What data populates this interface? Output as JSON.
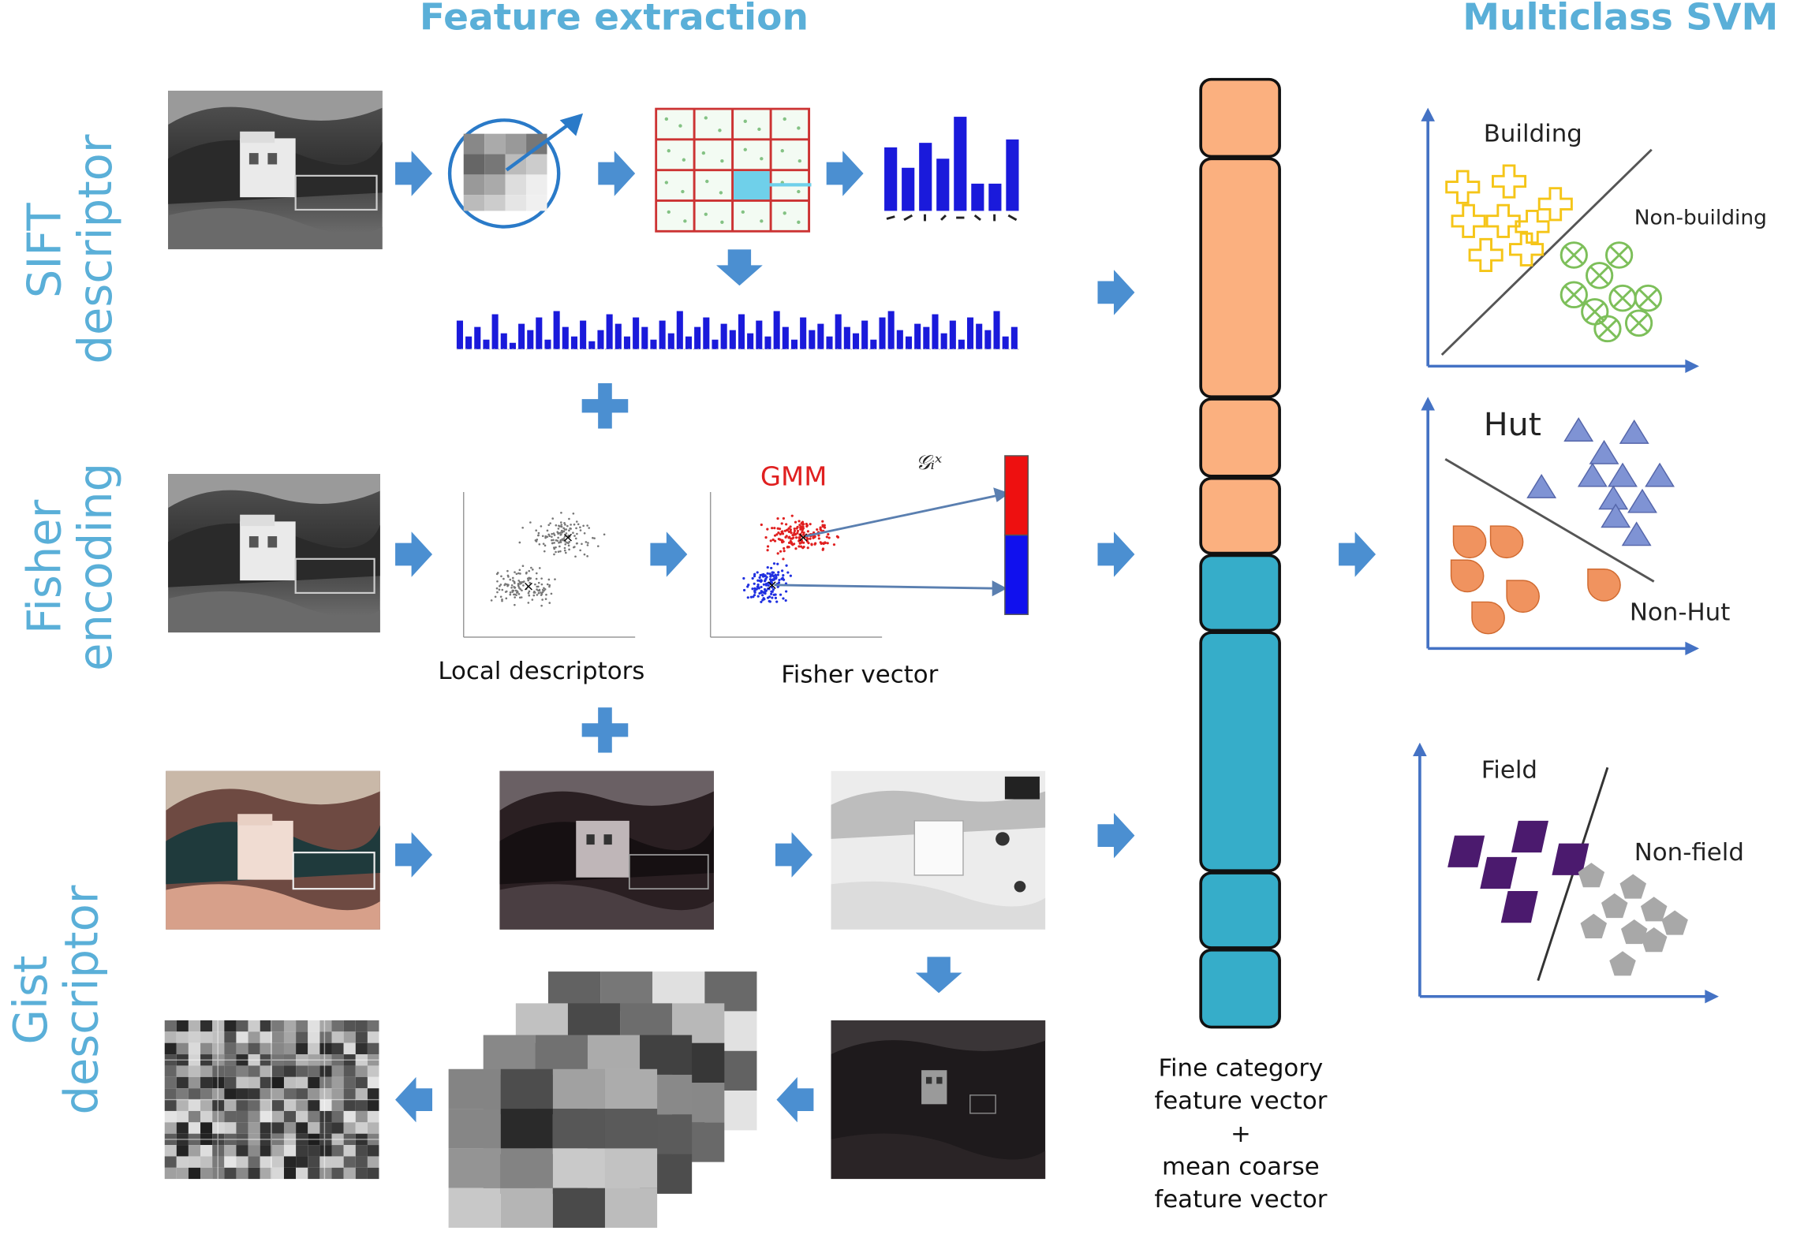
{
  "headings": {
    "feature_extraction": "Feature extraction",
    "multiclass_svm": "Multiclass SVM"
  },
  "row_labels": {
    "sift": [
      "SIFT",
      "descriptor"
    ],
    "fisher": [
      "Fisher",
      "encoding"
    ],
    "gist": [
      "Gist",
      "descriptor"
    ]
  },
  "captions": {
    "local_descriptors": "Local descriptors",
    "fisher_vector": "Fisher vector",
    "gmm": "GMM",
    "gmm_gradient": "𝒢ᵢˣ"
  },
  "feature_vector_label": {
    "line1": "Fine category",
    "line2": "feature vector",
    "line3": "+",
    "line4": "mean coarse",
    "line5": "feature vector"
  },
  "svm_panels": {
    "building": {
      "positive": "Building",
      "negative": "Non-building"
    },
    "hut": {
      "positive": "Hut",
      "negative": "Non-Hut"
    },
    "field": {
      "positive": "Field",
      "negative": "Non-field"
    }
  },
  "colors": {
    "accent_blue": "#5aafd8",
    "arrow_blue": "#4b8fd1",
    "coarse_segment": "#fbb07f",
    "fine_segment": "#36adc9",
    "building_marker": "#f5c518",
    "nonbuilding_marker": "#7dbf5a",
    "hut_marker": "#7f93d4",
    "nonhut_marker": "#f0935f",
    "field_marker": "#4b1a6e",
    "nonfield_marker": "#a8a8a8",
    "gmm_red": "#e02020",
    "gmm_blue": "#2030e0"
  },
  "icons": [
    "arrow-right-icon",
    "arrow-left-icon",
    "arrow-down-icon",
    "plus-icon"
  ]
}
